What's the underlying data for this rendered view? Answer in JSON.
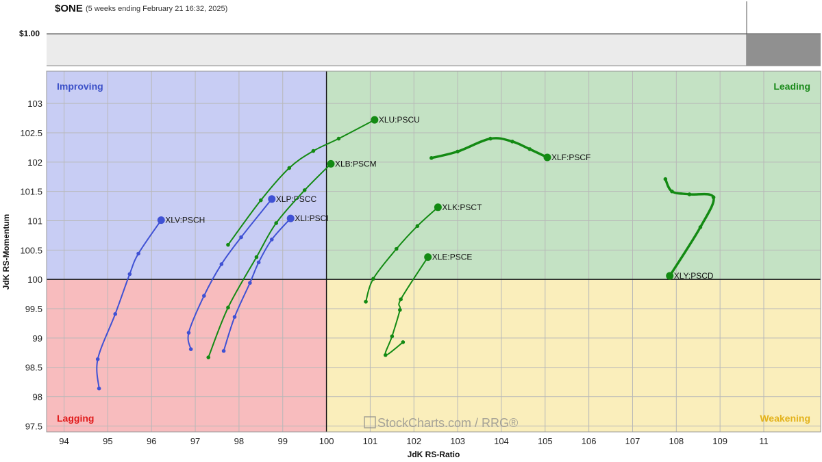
{
  "header": {
    "symbol": "$ONE",
    "period": "(5 weeks ending February 21 16:32, 2025)",
    "benchmark_value": "$1.00"
  },
  "watermark": "StockCharts.com / RRG®",
  "colors": {
    "improving": "#c8cdf4",
    "leading": "#c4e2c4",
    "lagging": "#f8bcbe",
    "weakening": "#faeebb",
    "improving_text": "#3a4fc7",
    "leading_text": "#1a8a1a",
    "lagging_text": "#e01b1b",
    "weakening_text": "#e3b21b",
    "blue_trail": "#3f51d4",
    "green_trail": "#138a13"
  },
  "chart_data": {
    "type": "scatter",
    "subtype": "relative-rotation-graph",
    "xlabel": "JdK RS-Ratio",
    "ylabel": "JdK RS-Momentum",
    "xlim": [
      93.6,
      111.3
    ],
    "ylim": [
      97.4,
      103.55
    ],
    "x_ticks": [
      "94",
      "95",
      "96",
      "97",
      "98",
      "99",
      "100",
      "101",
      "102",
      "103",
      "104",
      "105",
      "106",
      "107",
      "108",
      "109",
      "11"
    ],
    "y_ticks": [
      "97.5",
      "98",
      "98.5",
      "99",
      "99.5",
      "100",
      "100.5",
      "101",
      "101.5",
      "102",
      "102.5",
      "103"
    ],
    "center": [
      100,
      100
    ],
    "quadrants": [
      "Improving",
      "Leading",
      "Lagging",
      "Weakening"
    ],
    "series": [
      {
        "name": "XLV:PSCH",
        "color": "blue",
        "points": [
          [
            94.8,
            98.14
          ],
          [
            94.77,
            98.64
          ],
          [
            95.17,
            99.41
          ],
          [
            95.5,
            100.09
          ],
          [
            95.7,
            100.44
          ],
          [
            96.22,
            101.01
          ]
        ]
      },
      {
        "name": "XLP:PSCC",
        "color": "blue",
        "points": [
          [
            96.9,
            98.81
          ],
          [
            96.85,
            99.09
          ],
          [
            97.2,
            99.72
          ],
          [
            97.6,
            100.26
          ],
          [
            98.05,
            100.72
          ],
          [
            98.75,
            101.37
          ]
        ]
      },
      {
        "name": "XLI:PSCI",
        "color": "blue",
        "points": [
          [
            97.65,
            98.78
          ],
          [
            97.9,
            99.36
          ],
          [
            98.25,
            99.94
          ],
          [
            98.45,
            100.29
          ],
          [
            98.75,
            100.68
          ],
          [
            99.18,
            101.04
          ]
        ]
      },
      {
        "name": "XLU:PSCU",
        "color": "green",
        "points": [
          [
            97.75,
            100.59
          ],
          [
            98.5,
            101.35
          ],
          [
            99.15,
            101.9
          ],
          [
            99.7,
            102.19
          ],
          [
            100.28,
            102.4
          ],
          [
            101.1,
            102.72
          ]
        ]
      },
      {
        "name": "XLB:PSCM",
        "color": "green",
        "points": [
          [
            97.3,
            98.67
          ],
          [
            97.75,
            99.52
          ],
          [
            98.4,
            100.38
          ],
          [
            98.85,
            100.96
          ],
          [
            99.5,
            101.52
          ],
          [
            100.1,
            101.97
          ]
        ]
      },
      {
        "name": "XLF:PSCF",
        "color": "green",
        "points": [
          [
            102.4,
            102.07
          ],
          [
            103.0,
            102.18
          ],
          [
            103.75,
            102.4
          ],
          [
            104.25,
            102.35
          ],
          [
            104.65,
            102.22
          ],
          [
            105.05,
            102.08
          ]
        ]
      },
      {
        "name": "XLK:PSCT",
        "color": "green",
        "points": [
          [
            100.9,
            99.62
          ],
          [
            101.07,
            100.01
          ],
          [
            101.6,
            100.52
          ],
          [
            102.08,
            100.91
          ],
          [
            102.55,
            101.23
          ]
        ]
      },
      {
        "name": "XLE:PSCE",
        "color": "green",
        "points": [
          [
            101.75,
            98.93
          ],
          [
            101.35,
            98.71
          ],
          [
            101.5,
            99.03
          ],
          [
            101.68,
            99.48
          ],
          [
            101.7,
            99.66
          ],
          [
            102.32,
            100.38
          ]
        ]
      },
      {
        "name": "XLY:PSCD",
        "color": "green",
        "points": [
          [
            107.75,
            101.71
          ],
          [
            107.9,
            101.5
          ],
          [
            108.3,
            101.45
          ],
          [
            108.85,
            101.4
          ],
          [
            108.55,
            100.89
          ],
          [
            107.85,
            100.06
          ]
        ]
      }
    ]
  }
}
